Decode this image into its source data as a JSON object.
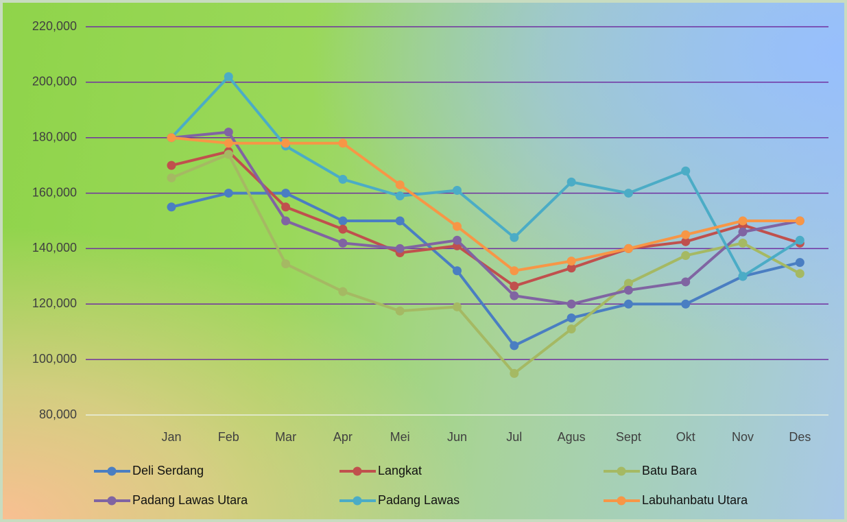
{
  "chart_data": {
    "type": "line",
    "categories": [
      null,
      "Jan",
      "Feb",
      "Mar",
      "Apr",
      "Mei",
      "Jun",
      "Jul",
      "Agus",
      "Sept",
      "Okt",
      "Nov",
      "Des"
    ],
    "series": [
      {
        "name": "Deli Serdang",
        "color": "#4a7ec2",
        "values": [
          null,
          155000,
          160000,
          160000,
          150000,
          150000,
          132000,
          105000,
          115000,
          120000,
          120000,
          130000,
          135000
        ]
      },
      {
        "name": "Langkat",
        "color": "#c0504d",
        "values": [
          null,
          170000,
          175000,
          155000,
          147000,
          138500,
          141000,
          126500,
          133000,
          140000,
          142500,
          148500,
          142000
        ]
      },
      {
        "name": "Batu Bara",
        "color": "#a5b963",
        "values": [
          null,
          165500,
          174000,
          134500,
          124500,
          117500,
          119000,
          95000,
          111000,
          127500,
          137500,
          142000,
          131000
        ]
      },
      {
        "name": "Padang Lawas Utara",
        "color": "#8064a2",
        "values": [
          null,
          180000,
          182000,
          150000,
          142000,
          140000,
          143000,
          123000,
          120000,
          125000,
          128000,
          146000,
          150000
        ]
      },
      {
        "name": "Padang Lawas",
        "color": "#4bacc6",
        "values": [
          null,
          180000,
          202000,
          177000,
          165000,
          159000,
          161000,
          144000,
          164000,
          160000,
          168000,
          130000,
          143000
        ]
      },
      {
        "name": "Labuhanbatu Utara",
        "color": "#f79646",
        "values": [
          null,
          180000,
          178000,
          178000,
          178000,
          163000,
          148000,
          132000,
          135500,
          140000,
          145000,
          150000,
          150000
        ]
      }
    ],
    "ylim": [
      80000,
      220000
    ],
    "yticks": [
      {
        "value": 80000,
        "label": "80,000"
      },
      {
        "value": 100000,
        "label": "100,000"
      },
      {
        "value": 120000,
        "label": "120,000"
      },
      {
        "value": 140000,
        "label": "140,000"
      },
      {
        "value": 160000,
        "label": "160,000"
      },
      {
        "value": 180000,
        "label": "180,000"
      },
      {
        "value": 200000,
        "label": "200,000"
      },
      {
        "value": 220000,
        "label": "220,000"
      }
    ],
    "grid": true,
    "legend": "bottom"
  }
}
